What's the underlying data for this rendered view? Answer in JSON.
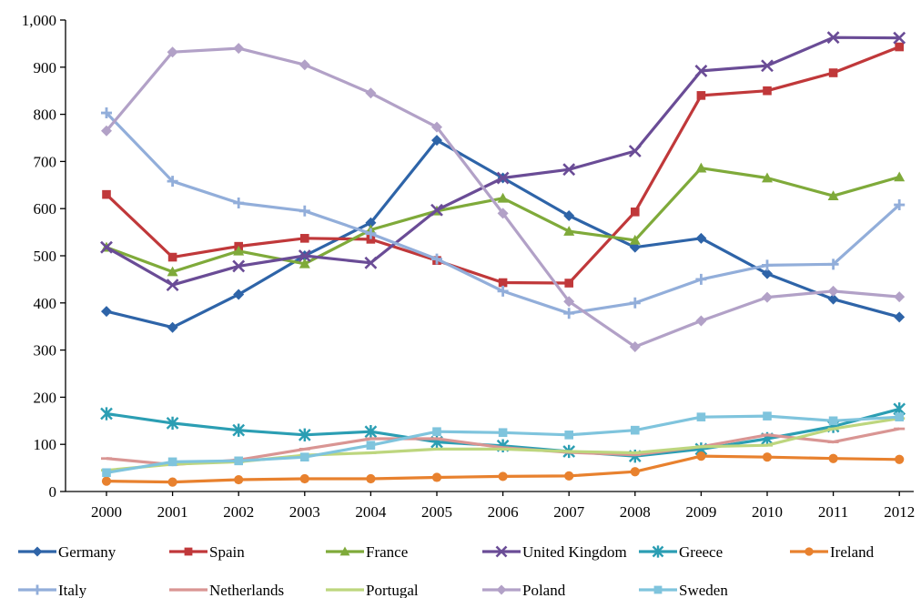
{
  "chart_data": {
    "type": "line",
    "title": "",
    "xlabel": "",
    "ylabel": "",
    "x": [
      "2000",
      "2001",
      "2002",
      "2003",
      "2004",
      "2005",
      "2006",
      "2007",
      "2008",
      "2009",
      "2010",
      "2011",
      "2012"
    ],
    "ylim": [
      0,
      1000
    ],
    "yticks": [
      0,
      100,
      200,
      300,
      400,
      500,
      600,
      700,
      800,
      900,
      1000
    ],
    "ytick_labels": [
      "0",
      "100",
      "200",
      "300",
      "400",
      "500",
      "600",
      "700",
      "800",
      "900",
      "1,000"
    ],
    "grid": false,
    "legend_position": "bottom",
    "series": [
      {
        "name": "Germany",
        "color": "#2E64A8",
        "marker": "diamond",
        "values": [
          382,
          348,
          418,
          500,
          570,
          745,
          665,
          585,
          518,
          537,
          462,
          408,
          370
        ]
      },
      {
        "name": "Spain",
        "color": "#C0383A",
        "marker": "square",
        "values": [
          630,
          497,
          520,
          537,
          535,
          490,
          443,
          442,
          593,
          840,
          850,
          888,
          943
        ]
      },
      {
        "name": "France",
        "color": "#7FAA3A",
        "marker": "triangle",
        "values": [
          518,
          466,
          510,
          483,
          555,
          595,
          622,
          552,
          533,
          686,
          665,
          627,
          667
        ]
      },
      {
        "name": "United Kingdom",
        "color": "#6A4C96",
        "marker": "x",
        "values": [
          518,
          438,
          478,
          500,
          485,
          597,
          665,
          683,
          722,
          892,
          903,
          963,
          962
        ]
      },
      {
        "name": "Greece",
        "color": "#2B9EB3",
        "marker": "asterisk",
        "values": [
          165,
          145,
          130,
          120,
          127,
          105,
          97,
          85,
          75,
          90,
          112,
          138,
          175
        ]
      },
      {
        "name": "Ireland",
        "color": "#E8812E",
        "marker": "circle",
        "values": [
          22,
          20,
          25,
          27,
          27,
          30,
          32,
          33,
          42,
          75,
          73,
          70,
          68
        ]
      },
      {
        "name": "Italy",
        "color": "#92AEDA",
        "marker": "plus",
        "values": [
          803,
          658,
          612,
          595,
          547,
          493,
          425,
          378,
          400,
          450,
          480,
          482,
          608
        ]
      },
      {
        "name": "Netherlands",
        "color": "#D99593",
        "marker": "dash",
        "values": [
          70,
          57,
          67,
          90,
          112,
          112,
          93,
          83,
          78,
          95,
          120,
          105,
          133
        ]
      },
      {
        "name": "Portugal",
        "color": "#BDD67E",
        "marker": "dash",
        "values": [
          45,
          58,
          63,
          77,
          82,
          90,
          90,
          85,
          82,
          95,
          98,
          133,
          155
        ]
      },
      {
        "name": "Poland",
        "color": "#B2A1C7",
        "marker": "diamond",
        "values": [
          765,
          932,
          940,
          905,
          845,
          773,
          590,
          403,
          307,
          362,
          412,
          425,
          413
        ]
      },
      {
        "name": "Sweden",
        "color": "#7FC4DD",
        "marker": "square",
        "values": [
          40,
          63,
          65,
          73,
          98,
          127,
          125,
          120,
          130,
          158,
          160,
          150,
          158
        ]
      }
    ]
  }
}
